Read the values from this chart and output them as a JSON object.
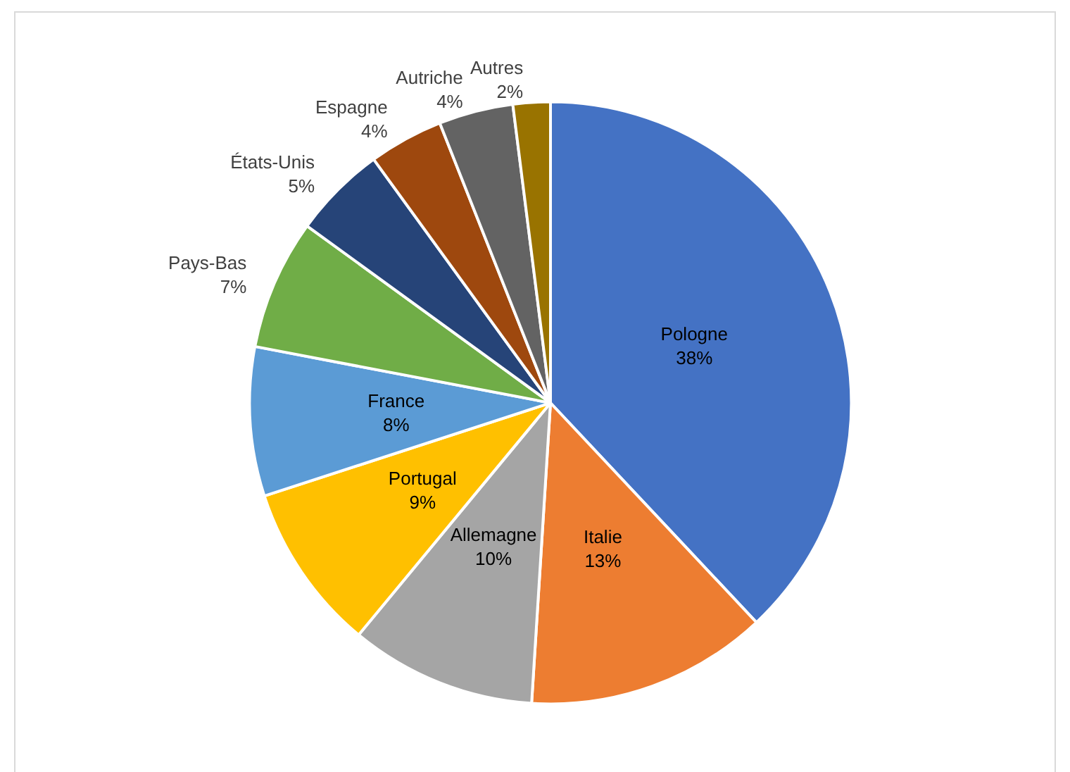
{
  "chart_data": {
    "type": "pie",
    "categories": [
      "Pologne",
      "Italie",
      "Allemagne",
      "Portugal",
      "France",
      "Pays-Bas",
      "États-Unis",
      "Espagne",
      "Autriche",
      "Autres"
    ],
    "values": [
      38,
      13,
      10,
      9,
      8,
      7,
      5,
      4,
      4,
      2
    ],
    "value_labels": [
      "38%",
      "13%",
      "10%",
      "9%",
      "8%",
      "7%",
      "5%",
      "4%",
      "4%",
      "2%"
    ],
    "colors": [
      "#4472c4",
      "#ed7d31",
      "#a5a5a5",
      "#ffc000",
      "#5b9bd5",
      "#70ad47",
      "#264478",
      "#9e480e",
      "#636363",
      "#997300"
    ],
    "legend": false
  }
}
